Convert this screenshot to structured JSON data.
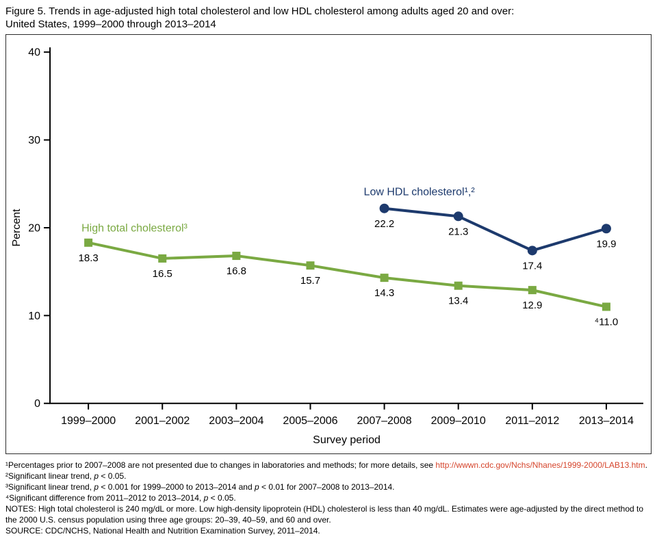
{
  "title": {
    "line1": "Figure 5. Trends in age-adjusted high total cholesterol and low HDL cholesterol among adults aged 20 and over:",
    "line2": "United States, 1999–2000 through 2013–2014"
  },
  "colors": {
    "green": "#7aa942",
    "navy": "#1d3a6d",
    "link": "#d5442b",
    "axis": "#000000"
  },
  "chart_data": {
    "type": "line",
    "categories": [
      "1999–2000",
      "2001–2002",
      "2003–2004",
      "2005–2006",
      "2007–2008",
      "2009–2010",
      "2011–2012",
      "2013–2014"
    ],
    "series": [
      {
        "name": "High total cholesterol³",
        "color": "#7aa942",
        "marker": "square",
        "values": [
          18.3,
          16.5,
          16.8,
          15.7,
          14.3,
          13.4,
          12.9,
          11.0
        ],
        "value_labels": [
          "18.3",
          "16.5",
          "16.8",
          "15.7",
          "14.3",
          "13.4",
          "12.9",
          "⁴11.0"
        ]
      },
      {
        "name": "Low HDL cholesterol¹,²",
        "color": "#1d3a6d",
        "marker": "circle",
        "values": [
          null,
          null,
          null,
          null,
          22.2,
          21.3,
          17.4,
          19.9
        ],
        "value_labels": [
          null,
          null,
          null,
          null,
          "22.2",
          "21.3",
          "17.4",
          "19.9"
        ]
      }
    ],
    "xlabel": "Survey period",
    "ylabel": "Percent",
    "ylim": [
      0,
      40
    ],
    "yticks": [
      0,
      10,
      20,
      30,
      40
    ],
    "grid": false,
    "legend_position": "inline series annotations"
  },
  "footnotes": [
    {
      "name": "footnote-1",
      "segments": [
        {
          "text": "¹Percentages prior to 2007–2008 are not presented due to changes in laboratories and methods; for more details, see "
        },
        {
          "text": "http://wwwn.cdc.gov/Nchs/Nhanes/1999-2000/LAB13.htm",
          "style": "link"
        },
        {
          "text": "."
        }
      ]
    },
    {
      "name": "footnote-2",
      "segments": [
        {
          "text": "²Significant linear trend, "
        },
        {
          "text": "p",
          "style": "italic"
        },
        {
          "text": " < 0.05."
        }
      ]
    },
    {
      "name": "footnote-3",
      "segments": [
        {
          "text": "³Significant linear trend, "
        },
        {
          "text": "p",
          "style": "italic"
        },
        {
          "text": " < 0.001 for 1999–2000 to 2013–2014 and "
        },
        {
          "text": "p",
          "style": "italic"
        },
        {
          "text": " < 0.01 for 2007–2008 to 2013–2014."
        }
      ]
    },
    {
      "name": "footnote-4",
      "segments": [
        {
          "text": "⁴Significant difference from 2011–2012 to 2013–2014, "
        },
        {
          "text": "p",
          "style": "italic"
        },
        {
          "text": " < 0.05."
        }
      ]
    },
    {
      "name": "notes",
      "segments": [
        {
          "text": "NOTES: High total cholesterol is 240 mg/dL or more. Low high-density lipoprotein (HDL) cholesterol is less than 40 mg/dL. Estimates were age-adjusted by the direct method to the 2000 U.S. census population using three age groups: 20–39, 40–59, and 60 and over."
        }
      ]
    },
    {
      "name": "source",
      "segments": [
        {
          "text": "SOURCE: CDC/NCHS, National Health and Nutrition Examination Survey, 2011–2014."
        }
      ]
    }
  ]
}
